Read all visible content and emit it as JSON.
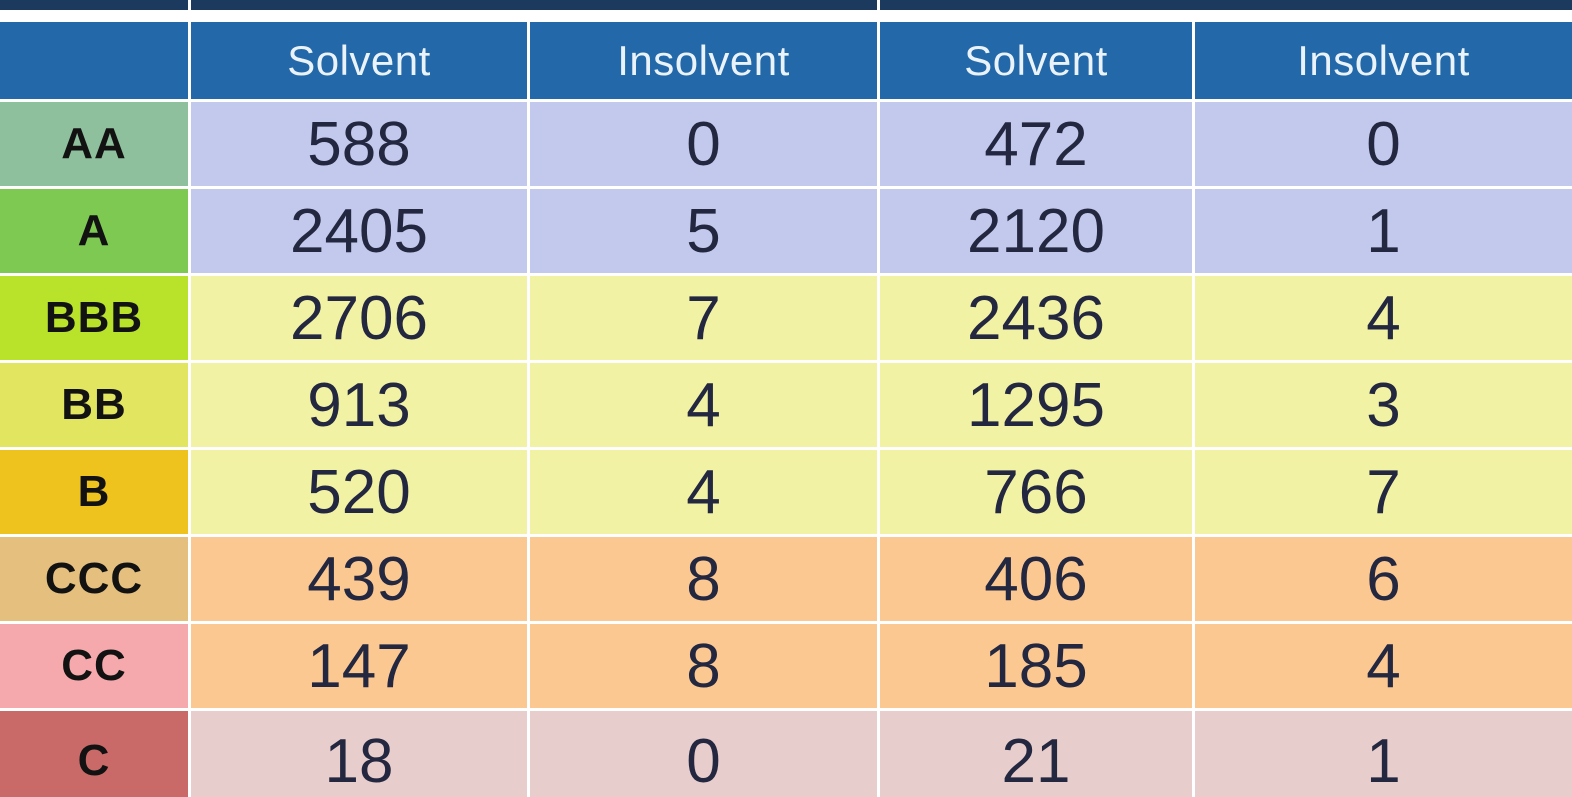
{
  "colors": {
    "top_bar": "#1b3a5e",
    "header_bg": "#2368a9",
    "header_text": "#eaf3fa",
    "rating_text": "#121212",
    "value_text": "#23273f"
  },
  "table": {
    "corner_label": "",
    "headers": [
      "Solvent",
      "Insolvent",
      "Solvent",
      "Insolvent"
    ],
    "rows": [
      {
        "rating": "AA",
        "rating_color": "#8fc09d",
        "band_color": "#c3c9ed",
        "values": [
          "588",
          "0",
          "472",
          "0"
        ]
      },
      {
        "rating": "A",
        "rating_color": "#7dc952",
        "band_color": "#c3c9ed",
        "values": [
          "2405",
          "5",
          "2120",
          "1"
        ]
      },
      {
        "rating": "BBB",
        "rating_color": "#b9e22b",
        "band_color": "#f1f2a4",
        "values": [
          "2706",
          "7",
          "2436",
          "4"
        ]
      },
      {
        "rating": "BB",
        "rating_color": "#e2e55f",
        "band_color": "#f1f2a4",
        "values": [
          "913",
          "4",
          "1295",
          "3"
        ]
      },
      {
        "rating": "B",
        "rating_color": "#efc31d",
        "band_color": "#f1f2a4",
        "values": [
          "520",
          "4",
          "766",
          "7"
        ]
      },
      {
        "rating": "CCC",
        "rating_color": "#e4bf7d",
        "band_color": "#fcc891",
        "values": [
          "439",
          "8",
          "406",
          "6"
        ]
      },
      {
        "rating": "CC",
        "rating_color": "#f5a9ac",
        "band_color": "#fcc891",
        "values": [
          "147",
          "8",
          "185",
          "4"
        ]
      },
      {
        "rating": "C",
        "rating_color": "#ca6a68",
        "band_color": "#e7cdcb",
        "values": [
          "18",
          "0",
          "21",
          "1"
        ]
      }
    ]
  },
  "chart_data": {
    "type": "table",
    "title": "",
    "column_groups": [
      "group-1",
      "group-2"
    ],
    "column_headers": [
      "Solvent",
      "Insolvent",
      "Solvent",
      "Insolvent"
    ],
    "row_labels": [
      "AA",
      "A",
      "BBB",
      "BB",
      "B",
      "CCC",
      "CC",
      "C"
    ],
    "rows": [
      [
        588,
        0,
        472,
        0
      ],
      [
        2405,
        5,
        2120,
        1
      ],
      [
        2706,
        7,
        2436,
        4
      ],
      [
        913,
        4,
        1295,
        3
      ],
      [
        520,
        4,
        766,
        7
      ],
      [
        439,
        8,
        406,
        6
      ],
      [
        147,
        8,
        185,
        4
      ],
      [
        18,
        0,
        21,
        1
      ]
    ]
  }
}
